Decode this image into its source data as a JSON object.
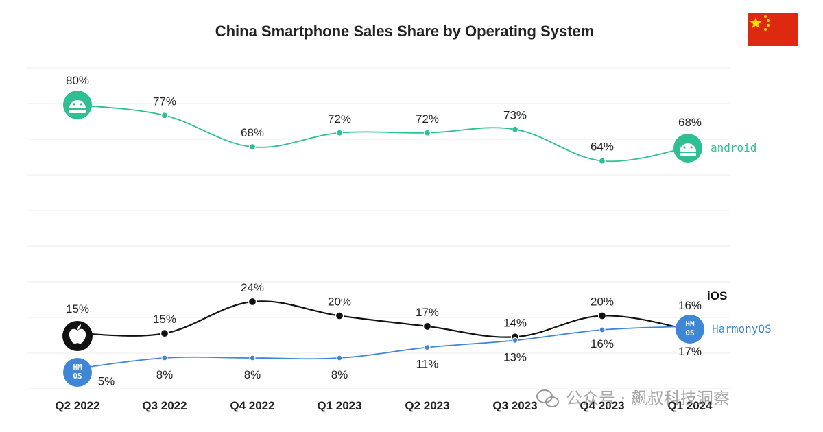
{
  "chart_data": {
    "type": "line",
    "title": "China Smartphone Sales Share by Operating System",
    "categories": [
      "Q2 2022",
      "Q3 2022",
      "Q4 2022",
      "Q1 2023",
      "Q2 2023",
      "Q3 2023",
      "Q4 2023",
      "Q1 2024"
    ],
    "xlabel": "",
    "ylabel": "",
    "ylim": [
      0,
      90
    ],
    "grid": true,
    "series": [
      {
        "name": "android",
        "color": "#2fbf94",
        "values": [
          80,
          77,
          68,
          72,
          72,
          73,
          64,
          68
        ],
        "labels": [
          "80%",
          "77%",
          "68%",
          "72%",
          "72%",
          "73%",
          "64%",
          "68%"
        ]
      },
      {
        "name": "iOS",
        "color": "#111111",
        "values": [
          15,
          15,
          24,
          20,
          17,
          14,
          20,
          16
        ],
        "labels": [
          "15%",
          "15%",
          "24%",
          "20%",
          "17%",
          "14%",
          "20%",
          "16%"
        ]
      },
      {
        "name": "HarmonyOS",
        "color": "#3f86d6",
        "values": [
          5,
          8,
          8,
          8,
          11,
          13,
          16,
          17
        ],
        "labels": [
          "5%",
          "8%",
          "8%",
          "8%",
          "11%",
          "13%",
          "16%",
          "17%"
        ]
      }
    ],
    "legend_position": "right"
  },
  "badges": {
    "android_text": "android",
    "harmony_text": "HM\nOS",
    "harmony_lines": [
      "HM",
      "OS"
    ]
  },
  "flag": {
    "name": "china-flag",
    "color": "#de2910",
    "star_color": "#ffde00"
  },
  "watermark": {
    "text": "公众号 · 飙叔科技洞察",
    "icon": "wechat-icon"
  }
}
